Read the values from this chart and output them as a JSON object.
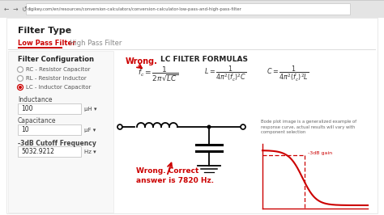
{
  "bg_color": "#f0f0f0",
  "white": "#ffffff",
  "red": "#cc0000",
  "black": "#222222",
  "gray": "#888888",
  "light_gray": "#dddddd",
  "browser_bar_color": "#e4e4e4",
  "browser_url": "digikey.com/en/resources/conversion-calculators/conversion-calculator-low-pass-and-high-pass-filter",
  "title": "Filter Type",
  "tab1": "Low Pass Filter",
  "tab2": "High Pass Filter",
  "filter_config_title": "Filter Configuration",
  "radio1": "RC - Resistor Capacitor",
  "radio2": "RL - Resistor Inductor",
  "radio3": "LC - Inductor Capacitor",
  "lc_formula_title": "LC FILTER FORMULAS",
  "wrong_label1": "Wrong.",
  "wrong_label2": "Wrong. Correct\nanswer is 7820 Hz.",
  "inductance_label": "Inductance",
  "inductance_val": "100",
  "inductance_unit": "μH ▾",
  "capacitance_label": "Capacitance",
  "capacitance_val": "10",
  "capacitance_unit": "μF ▾",
  "freq_label": "-3dB Cutoff Frequency",
  "freq_val": "5032.9212",
  "freq_unit": "Hz ▾",
  "bode_note": "Bode plot image is a generalized example of\nresponse curve, actual results will vary with\ncomponent selection",
  "bode_label": "-3dB gain",
  "content_bg": "#f8f8f8"
}
